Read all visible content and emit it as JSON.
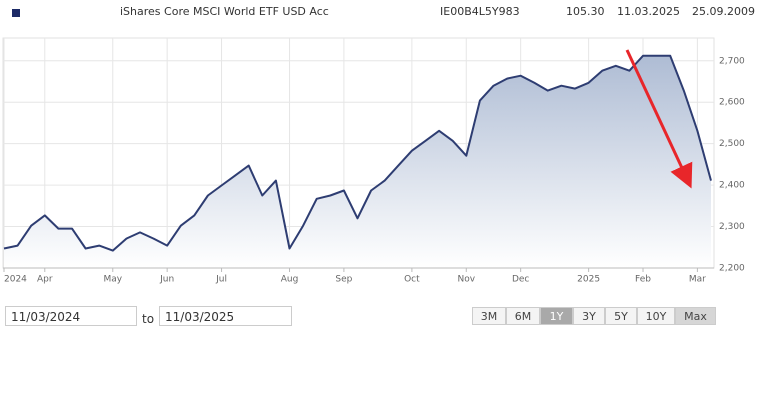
{
  "header": {
    "title": "iShares Core MSCI World ETF USD Acc",
    "isin": "IE00B4L5Y983",
    "price": "105.30",
    "date": "11.03.2025",
    "inception": "25.09.2009"
  },
  "chart_data": {
    "type": "area",
    "categories": [
      "2024",
      null,
      null,
      "Apr",
      null,
      null,
      null,
      null,
      "May",
      null,
      null,
      null,
      "Jun",
      null,
      null,
      null,
      "Jul",
      null,
      null,
      null,
      null,
      "Aug",
      null,
      null,
      null,
      "Sep",
      null,
      null,
      null,
      null,
      "Oct",
      null,
      null,
      null,
      "Nov",
      null,
      null,
      null,
      "Dec",
      null,
      null,
      null,
      null,
      "2025",
      null,
      null,
      null,
      "Feb",
      null,
      null,
      null,
      "Mar",
      null
    ],
    "values": [
      2247,
      2254,
      2302,
      2327,
      2295,
      2295,
      2247,
      2254,
      2242,
      2271,
      2286,
      2271,
      2254,
      2302,
      2327,
      2375,
      2399,
      2423,
      2447,
      2375,
      2411,
      2247,
      2302,
      2367,
      2375,
      2387,
      2320,
      2387,
      2411,
      2447,
      2483,
      2507,
      2531,
      2507,
      2471,
      2604,
      2640,
      2657,
      2664,
      2647,
      2628,
      2640,
      2633,
      2647,
      2676,
      2688,
      2676,
      2712,
      2712,
      2712,
      2628,
      2531,
      2411
    ],
    "color": "#2e3d72",
    "ylim": [
      2200,
      2755
    ],
    "yticks": [
      {
        "value": 2200,
        "label": "2,200"
      },
      {
        "value": 2300,
        "label": "2,300"
      },
      {
        "value": 2400,
        "label": "2,400"
      },
      {
        "value": 2500,
        "label": "2,500"
      },
      {
        "value": 2600,
        "label": "2,600"
      },
      {
        "value": 2700,
        "label": "2,700"
      }
    ],
    "grid": true
  },
  "controls": {
    "from": "11/03/2024",
    "to_label": "to",
    "until": "11/03/2025",
    "ranges": [
      "3M",
      "6M",
      "1Y",
      "3Y",
      "5Y",
      "10Y",
      "Max"
    ],
    "selected": 2
  }
}
